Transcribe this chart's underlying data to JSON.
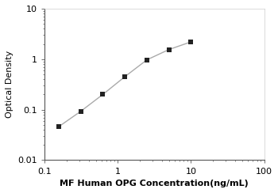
{
  "x": [
    0.156,
    0.3125,
    0.625,
    1.25,
    2.5,
    5.0,
    10.0
  ],
  "y": [
    0.046,
    0.093,
    0.2,
    0.45,
    0.97,
    1.55,
    2.2
  ],
  "xlabel": "MF Human OPG Concentration(ng/mL)",
  "ylabel": "Optical Density",
  "xlim": [
    0.1,
    100
  ],
  "ylim": [
    0.01,
    10
  ],
  "line_color": "#aaaaaa",
  "marker_color": "#222222",
  "marker": "s",
  "marker_size": 4.5,
  "line_width": 1.0,
  "background_color": "#ffffff",
  "xlabel_fontsize": 8,
  "ylabel_fontsize": 8,
  "tick_fontsize": 8,
  "xtick_labels": [
    "0.1",
    "1",
    "10",
    "100"
  ],
  "xtick_values": [
    0.1,
    1,
    10,
    100
  ],
  "ytick_labels": [
    "0.01",
    "0.1",
    "1",
    "10"
  ],
  "ytick_values": [
    0.01,
    0.1,
    1,
    10
  ]
}
